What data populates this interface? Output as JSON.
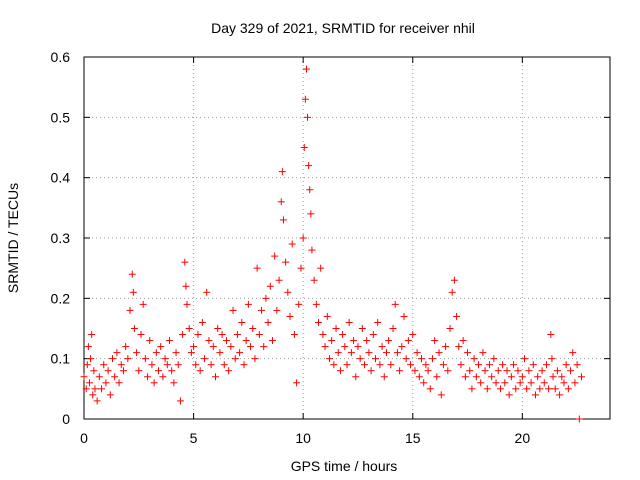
{
  "chart_data": {
    "type": "scatter",
    "title": "Day 329 of 2021, SRMTID for receiver nhil",
    "xlabel": "GPS time / hours",
    "ylabel": "SRMTID / TECUs",
    "xlim": [
      0,
      24
    ],
    "ylim": [
      0,
      0.6
    ],
    "xticks": [
      0,
      5,
      10,
      15,
      20
    ],
    "xtick_labels": [
      "0",
      "5",
      "10",
      "15",
      "20"
    ],
    "yticks": [
      0,
      0.1,
      0.2,
      0.3,
      0.4,
      0.5,
      0.6
    ],
    "ytick_labels": [
      "0",
      "0.1",
      "0.2",
      "0.3",
      "0.4",
      "0.5",
      "0.6"
    ],
    "grid": true,
    "marker": "plus",
    "color": "#ff0000",
    "series": [
      {
        "name": "SRMTID",
        "points": [
          [
            0.0,
            0.07
          ],
          [
            0.1,
            0.05
          ],
          [
            0.15,
            0.09
          ],
          [
            0.2,
            0.12
          ],
          [
            0.25,
            0.06
          ],
          [
            0.3,
            0.1
          ],
          [
            0.35,
            0.14
          ],
          [
            0.4,
            0.04
          ],
          [
            0.45,
            0.08
          ],
          [
            0.5,
            0.05
          ],
          [
            0.6,
            0.03
          ],
          [
            0.7,
            0.07
          ],
          [
            0.8,
            0.05
          ],
          [
            0.9,
            0.09
          ],
          [
            1.0,
            0.06
          ],
          [
            1.1,
            0.08
          ],
          [
            1.2,
            0.04
          ],
          [
            1.3,
            0.1
          ],
          [
            1.4,
            0.07
          ],
          [
            1.5,
            0.11
          ],
          [
            1.6,
            0.06
          ],
          [
            1.7,
            0.09
          ],
          [
            1.8,
            0.08
          ],
          [
            1.9,
            0.12
          ],
          [
            2.0,
            0.1
          ],
          [
            2.1,
            0.18
          ],
          [
            2.2,
            0.24
          ],
          [
            2.25,
            0.21
          ],
          [
            2.3,
            0.15
          ],
          [
            2.4,
            0.11
          ],
          [
            2.5,
            0.08
          ],
          [
            2.6,
            0.14
          ],
          [
            2.7,
            0.19
          ],
          [
            2.8,
            0.1
          ],
          [
            2.9,
            0.07
          ],
          [
            3.0,
            0.13
          ],
          [
            3.1,
            0.09
          ],
          [
            3.2,
            0.06
          ],
          [
            3.3,
            0.11
          ],
          [
            3.4,
            0.08
          ],
          [
            3.5,
            0.12
          ],
          [
            3.6,
            0.07
          ],
          [
            3.7,
            0.1
          ],
          [
            3.8,
            0.09
          ],
          [
            3.9,
            0.13
          ],
          [
            4.0,
            0.08
          ],
          [
            4.1,
            0.06
          ],
          [
            4.2,
            0.11
          ],
          [
            4.3,
            0.09
          ],
          [
            4.4,
            0.03
          ],
          [
            4.5,
            0.14
          ],
          [
            4.6,
            0.26
          ],
          [
            4.65,
            0.22
          ],
          [
            4.7,
            0.19
          ],
          [
            4.8,
            0.15
          ],
          [
            4.9,
            0.11
          ],
          [
            5.0,
            0.12
          ],
          [
            5.1,
            0.09
          ],
          [
            5.2,
            0.14
          ],
          [
            5.3,
            0.08
          ],
          [
            5.4,
            0.16
          ],
          [
            5.5,
            0.1
          ],
          [
            5.6,
            0.21
          ],
          [
            5.7,
            0.13
          ],
          [
            5.8,
            0.09
          ],
          [
            5.9,
            0.12
          ],
          [
            6.0,
            0.07
          ],
          [
            6.1,
            0.15
          ],
          [
            6.2,
            0.11
          ],
          [
            6.3,
            0.14
          ],
          [
            6.4,
            0.09
          ],
          [
            6.5,
            0.13
          ],
          [
            6.6,
            0.08
          ],
          [
            6.7,
            0.12
          ],
          [
            6.8,
            0.18
          ],
          [
            6.9,
            0.1
          ],
          [
            7.0,
            0.14
          ],
          [
            7.1,
            0.11
          ],
          [
            7.2,
            0.16
          ],
          [
            7.3,
            0.09
          ],
          [
            7.4,
            0.13
          ],
          [
            7.5,
            0.19
          ],
          [
            7.6,
            0.12
          ],
          [
            7.7,
            0.15
          ],
          [
            7.8,
            0.1
          ],
          [
            7.9,
            0.25
          ],
          [
            8.0,
            0.14
          ],
          [
            8.1,
            0.18
          ],
          [
            8.2,
            0.12
          ],
          [
            8.3,
            0.2
          ],
          [
            8.4,
            0.16
          ],
          [
            8.5,
            0.22
          ],
          [
            8.6,
            0.13
          ],
          [
            8.7,
            0.27
          ],
          [
            8.8,
            0.18
          ],
          [
            8.9,
            0.23
          ],
          [
            9.0,
            0.36
          ],
          [
            9.05,
            0.41
          ],
          [
            9.1,
            0.33
          ],
          [
            9.2,
            0.26
          ],
          [
            9.3,
            0.21
          ],
          [
            9.4,
            0.17
          ],
          [
            9.5,
            0.29
          ],
          [
            9.6,
            0.14
          ],
          [
            9.7,
            0.06
          ],
          [
            9.8,
            0.19
          ],
          [
            9.9,
            0.25
          ],
          [
            10.0,
            0.3
          ],
          [
            10.05,
            0.45
          ],
          [
            10.1,
            0.53
          ],
          [
            10.15,
            0.58
          ],
          [
            10.2,
            0.5
          ],
          [
            10.25,
            0.42
          ],
          [
            10.3,
            0.38
          ],
          [
            10.35,
            0.34
          ],
          [
            10.4,
            0.28
          ],
          [
            10.5,
            0.23
          ],
          [
            10.6,
            0.19
          ],
          [
            10.7,
            0.16
          ],
          [
            10.8,
            0.25
          ],
          [
            10.9,
            0.14
          ],
          [
            11.0,
            0.12
          ],
          [
            11.1,
            0.17
          ],
          [
            11.2,
            0.1
          ],
          [
            11.3,
            0.13
          ],
          [
            11.4,
            0.09
          ],
          [
            11.5,
            0.15
          ],
          [
            11.6,
            0.11
          ],
          [
            11.7,
            0.08
          ],
          [
            11.8,
            0.14
          ],
          [
            11.9,
            0.12
          ],
          [
            12.0,
            0.09
          ],
          [
            12.1,
            0.16
          ],
          [
            12.2,
            0.11
          ],
          [
            12.3,
            0.13
          ],
          [
            12.4,
            0.07
          ],
          [
            12.5,
            0.12
          ],
          [
            12.6,
            0.1
          ],
          [
            12.7,
            0.15
          ],
          [
            12.8,
            0.09
          ],
          [
            12.9,
            0.13
          ],
          [
            13.0,
            0.11
          ],
          [
            13.1,
            0.08
          ],
          [
            13.2,
            0.14
          ],
          [
            13.3,
            0.1
          ],
          [
            13.4,
            0.16
          ],
          [
            13.5,
            0.09
          ],
          [
            13.6,
            0.12
          ],
          [
            13.7,
            0.07
          ],
          [
            13.8,
            0.11
          ],
          [
            13.9,
            0.13
          ],
          [
            14.0,
            0.09
          ],
          [
            14.1,
            0.15
          ],
          [
            14.2,
            0.19
          ],
          [
            14.3,
            0.11
          ],
          [
            14.4,
            0.08
          ],
          [
            14.5,
            0.12
          ],
          [
            14.6,
            0.17
          ],
          [
            14.7,
            0.1
          ],
          [
            14.8,
            0.13
          ],
          [
            14.9,
            0.09
          ],
          [
            15.0,
            0.14
          ],
          [
            15.1,
            0.08
          ],
          [
            15.2,
            0.11
          ],
          [
            15.3,
            0.07
          ],
          [
            15.4,
            0.1
          ],
          [
            15.5,
            0.06
          ],
          [
            15.6,
            0.09
          ],
          [
            15.7,
            0.08
          ],
          [
            15.8,
            0.05
          ],
          [
            15.9,
            0.1
          ],
          [
            16.0,
            0.13
          ],
          [
            16.1,
            0.07
          ],
          [
            16.2,
            0.11
          ],
          [
            16.3,
            0.04
          ],
          [
            16.4,
            0.09
          ],
          [
            16.5,
            0.12
          ],
          [
            16.6,
            0.08
          ],
          [
            16.7,
            0.15
          ],
          [
            16.8,
            0.21
          ],
          [
            16.9,
            0.23
          ],
          [
            17.0,
            0.17
          ],
          [
            17.1,
            0.12
          ],
          [
            17.2,
            0.09
          ],
          [
            17.3,
            0.13
          ],
          [
            17.4,
            0.07
          ],
          [
            17.5,
            0.11
          ],
          [
            17.6,
            0.08
          ],
          [
            17.7,
            0.05
          ],
          [
            17.8,
            0.1
          ],
          [
            17.9,
            0.07
          ],
          [
            18.0,
            0.09
          ],
          [
            18.1,
            0.06
          ],
          [
            18.2,
            0.11
          ],
          [
            18.3,
            0.08
          ],
          [
            18.4,
            0.05
          ],
          [
            18.5,
            0.09
          ],
          [
            18.6,
            0.07
          ],
          [
            18.7,
            0.1
          ],
          [
            18.8,
            0.06
          ],
          [
            18.9,
            0.08
          ],
          [
            19.0,
            0.05
          ],
          [
            19.1,
            0.09
          ],
          [
            19.2,
            0.06
          ],
          [
            19.3,
            0.08
          ],
          [
            19.4,
            0.04
          ],
          [
            19.5,
            0.07
          ],
          [
            19.6,
            0.09
          ],
          [
            19.7,
            0.05
          ],
          [
            19.8,
            0.08
          ],
          [
            19.9,
            0.06
          ],
          [
            20.0,
            0.07
          ],
          [
            20.1,
            0.1
          ],
          [
            20.2,
            0.05
          ],
          [
            20.3,
            0.08
          ],
          [
            20.4,
            0.06
          ],
          [
            20.5,
            0.09
          ],
          [
            20.6,
            0.04
          ],
          [
            20.7,
            0.07
          ],
          [
            20.8,
            0.05
          ],
          [
            20.9,
            0.08
          ],
          [
            21.0,
            0.06
          ],
          [
            21.1,
            0.09
          ],
          [
            21.2,
            0.05
          ],
          [
            21.3,
            0.14
          ],
          [
            21.35,
            0.1
          ],
          [
            21.4,
            0.07
          ],
          [
            21.5,
            0.05
          ],
          [
            21.6,
            0.08
          ],
          [
            21.7,
            0.04
          ],
          [
            21.8,
            0.07
          ],
          [
            21.9,
            0.06
          ],
          [
            22.0,
            0.09
          ],
          [
            22.1,
            0.05
          ],
          [
            22.2,
            0.08
          ],
          [
            22.3,
            0.11
          ],
          [
            22.4,
            0.06
          ],
          [
            22.5,
            0.09
          ],
          [
            22.6,
            0.0
          ],
          [
            22.7,
            0.07
          ]
        ]
      }
    ]
  }
}
